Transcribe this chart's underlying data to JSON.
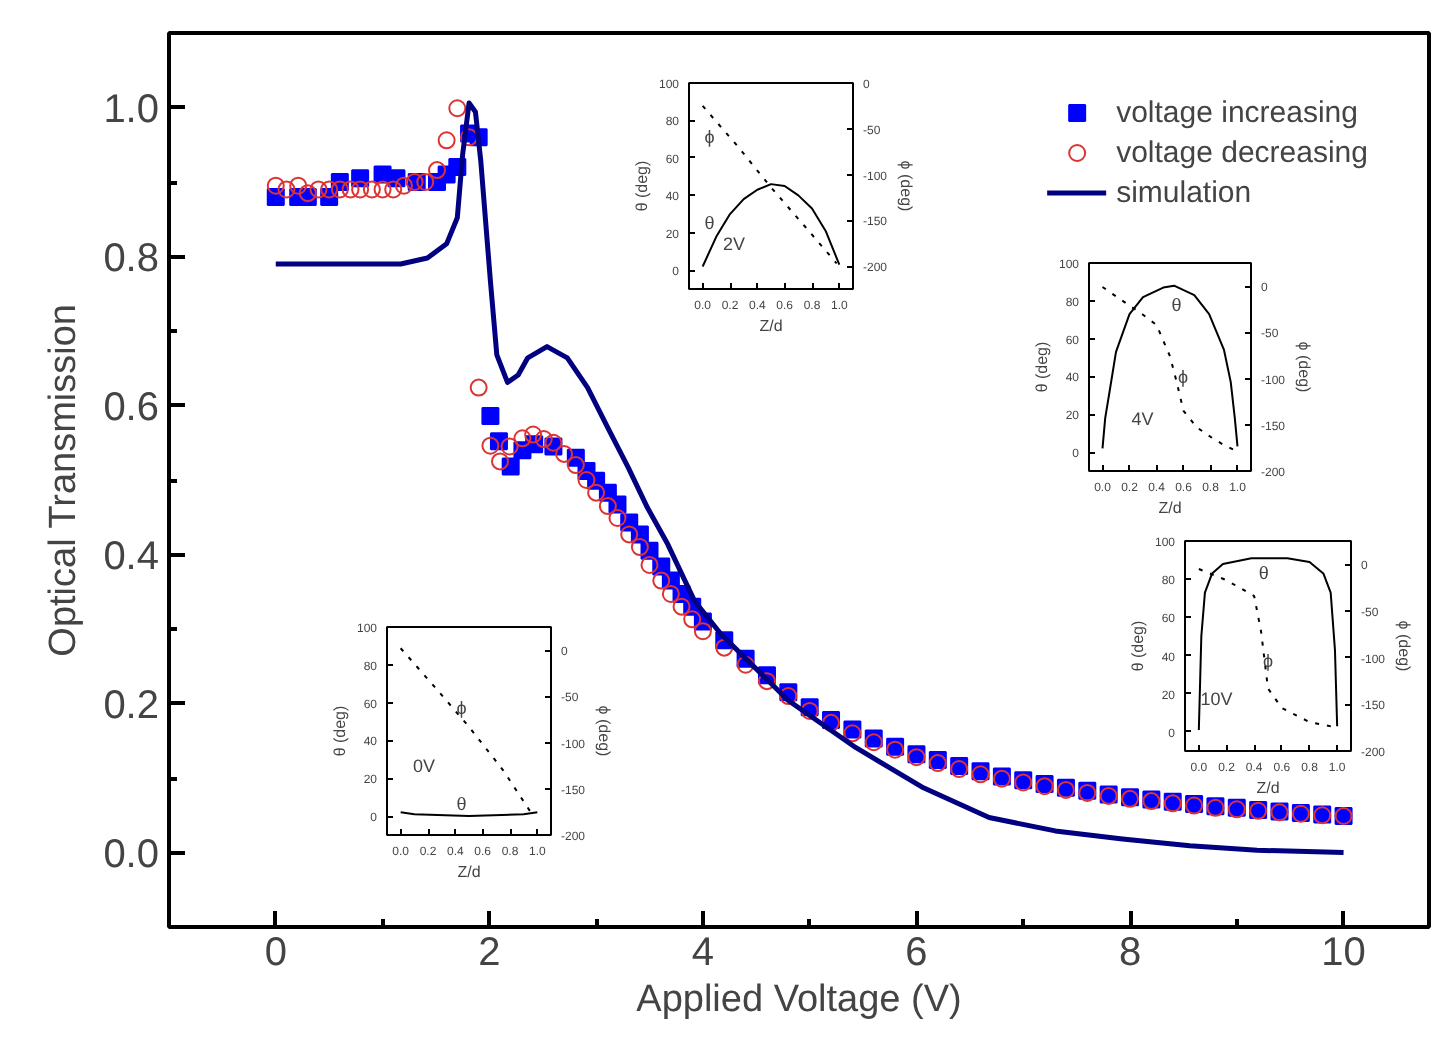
{
  "chart_data": [
    {
      "type": "scatter",
      "xlabel": "Applied Voltage (V)",
      "ylabel": "Optical Transmission",
      "xlim": [
        -1,
        10.8
      ],
      "ylim": [
        -0.1,
        1.1
      ],
      "xticks": [
        0,
        {
          "value": 1,
          "label": null
        },
        2,
        {
          "value": 3,
          "label": null
        },
        4,
        {
          "value": 5,
          "label": null
        },
        6,
        {
          "value": 7,
          "label": null
        },
        8,
        {
          "value": 9,
          "label": null
        },
        10
      ],
      "yticks": [
        {
          "value": 0,
          "label": "0.0"
        },
        {
          "value": 0.1,
          "label": null
        },
        {
          "value": 0.2,
          "label": "0.2"
        },
        {
          "value": 0.3,
          "label": null
        },
        {
          "value": 0.4,
          "label": "0.4"
        },
        {
          "value": 0.5,
          "label": null
        },
        {
          "value": 0.6,
          "label": "0.6"
        },
        {
          "value": 0.7,
          "label": null
        },
        {
          "value": 0.8,
          "label": "0.8"
        },
        {
          "value": 0.9,
          "label": null
        },
        {
          "value": 1.0,
          "label": "1.0"
        }
      ],
      "grid": false,
      "legend": "top right",
      "series": [
        {
          "name": "voltage increasing",
          "type": "scatter",
          "marker": "square",
          "color": "#0000ff",
          "x": [
            0,
            0.21,
            0.3,
            0.5,
            0.6,
            0.79,
            1.0,
            1.13,
            1.32,
            1.51,
            1.6,
            1.7,
            1.81,
            1.9,
            2.01,
            2.09,
            2.2,
            2.31,
            2.42,
            2.6,
            2.81,
            2.91,
            3.0,
            3.11,
            3.2,
            3.31,
            3.41,
            3.5,
            3.61,
            3.7,
            3.8,
            3.9,
            4.0,
            4.2,
            4.4,
            4.6,
            4.8,
            5.0,
            5.2,
            5.4,
            5.6,
            5.8,
            6.0,
            6.2,
            6.4,
            6.6,
            6.8,
            7.0,
            7.2,
            7.4,
            7.6,
            7.8,
            8.0,
            8.2,
            8.4,
            8.6,
            8.8,
            9.0,
            9.2,
            9.4,
            9.6,
            9.8,
            10.0
          ],
          "values": [
            0.88,
            0.88,
            0.88,
            0.88,
            0.9,
            0.905,
            0.91,
            0.905,
            0.9,
            0.9,
            0.91,
            0.92,
            0.965,
            0.96,
            0.586,
            0.552,
            0.518,
            0.54,
            0.548,
            0.545,
            0.53,
            0.512,
            0.499,
            0.483,
            0.467,
            0.443,
            0.427,
            0.405,
            0.384,
            0.365,
            0.347,
            0.33,
            0.31,
            0.285,
            0.26,
            0.238,
            0.215,
            0.195,
            0.178,
            0.165,
            0.153,
            0.142,
            0.132,
            0.124,
            0.116,
            0.109,
            0.102,
            0.097,
            0.092,
            0.087,
            0.083,
            0.078,
            0.074,
            0.071,
            0.068,
            0.065,
            0.062,
            0.06,
            0.057,
            0.055,
            0.053,
            0.051,
            0.049
          ]
        },
        {
          "name": "voltage decreasing",
          "type": "scatter",
          "marker": "circle",
          "color": "#dd3333",
          "x": [
            0,
            0.1,
            0.21,
            0.3,
            0.4,
            0.5,
            0.6,
            0.7,
            0.79,
            0.9,
            1.0,
            1.1,
            1.2,
            1.3,
            1.4,
            1.51,
            1.6,
            1.7,
            1.81,
            1.9,
            2.01,
            2.1,
            2.19,
            2.31,
            2.41,
            2.51,
            2.6,
            2.7,
            2.81,
            2.91,
            3.0,
            3.11,
            3.2,
            3.31,
            3.41,
            3.5,
            3.61,
            3.7,
            3.8,
            3.9,
            4.0,
            4.2,
            4.4,
            4.6,
            4.8,
            5.0,
            5.2,
            5.4,
            5.6,
            5.8,
            6.0,
            6.2,
            6.4,
            6.6,
            6.8,
            7.0,
            7.2,
            7.4,
            7.6,
            7.8,
            8.0,
            8.2,
            8.4,
            8.6,
            8.8,
            9.0,
            9.2,
            9.4,
            9.6,
            9.8,
            10.0
          ],
          "values": [
            0.895,
            0.89,
            0.895,
            0.885,
            0.89,
            0.89,
            0.89,
            0.89,
            0.89,
            0.89,
            0.89,
            0.89,
            0.895,
            0.9,
            0.9,
            0.916,
            0.956,
            0.999,
            0.96,
            0.624,
            0.546,
            0.525,
            0.545,
            0.556,
            0.561,
            0.555,
            0.55,
            0.535,
            0.52,
            0.5,
            0.483,
            0.465,
            0.449,
            0.427,
            0.41,
            0.386,
            0.365,
            0.347,
            0.33,
            0.313,
            0.297,
            0.275,
            0.252,
            0.23,
            0.21,
            0.19,
            0.174,
            0.16,
            0.148,
            0.138,
            0.128,
            0.12,
            0.112,
            0.105,
            0.099,
            0.094,
            0.089,
            0.084,
            0.08,
            0.076,
            0.072,
            0.069,
            0.066,
            0.063,
            0.06,
            0.058,
            0.056,
            0.054,
            0.052,
            0.05,
            0.049
          ]
        },
        {
          "name": "simulation",
          "type": "line",
          "line_style": "solid",
          "color": "#000080",
          "x": [
            0,
            1.17,
            1.42,
            1.6,
            1.7,
            1.75,
            1.81,
            1.87,
            1.92,
            2.01,
            2.07,
            2.17,
            2.27,
            2.36,
            2.54,
            2.73,
            2.92,
            3.11,
            3.3,
            3.48,
            3.67,
            3.92,
            4.17,
            4.8,
            5.43,
            6.05,
            6.68,
            7.3,
            7.93,
            8.56,
            9.19,
            10.0
          ],
          "values": [
            0.79,
            0.79,
            0.798,
            0.817,
            0.852,
            0.937,
            1.006,
            0.994,
            0.928,
            0.767,
            0.668,
            0.631,
            0.641,
            0.664,
            0.679,
            0.664,
            0.624,
            0.57,
            0.517,
            0.463,
            0.414,
            0.338,
            0.293,
            0.204,
            0.141,
            0.088,
            0.047,
            0.029,
            0.018,
            0.009,
            0.003,
            0.0
          ]
        }
      ]
    },
    {
      "type": "line",
      "xlabel": "Z/d",
      "ylabel": "θ (deg)",
      "y2label": "ϕ (deg)",
      "grid": false,
      "xlim": [
        -0.1,
        1.1
      ],
      "ylim": [
        -10,
        100
      ],
      "y2lim": [
        -225,
        0
      ],
      "xticks": [
        {
          "value": 0,
          "label": "0.0"
        },
        {
          "value": 0.2,
          "label": "0.2"
        },
        {
          "value": 0.4,
          "label": "0.4"
        },
        {
          "value": 0.6,
          "label": "0.6"
        },
        {
          "value": 0.8,
          "label": "0.8"
        },
        {
          "value": 1,
          "label": "1.0"
        }
      ],
      "yticks": [
        0,
        20,
        40,
        60,
        80,
        100
      ],
      "y2ticks": [
        0,
        -50,
        -100,
        -150,
        -200
      ],
      "annotations": [
        "ϕ",
        "θ",
        "2V"
      ],
      "series": [
        {
          "color": "#000000",
          "line_style": "solid",
          "x": [
            0,
            0.1,
            0.2,
            0.3,
            0.4,
            0.5,
            0.6,
            0.7,
            0.8,
            0.9,
            1.0
          ],
          "values": [
            2,
            18,
            30,
            38,
            43,
            46,
            45,
            40,
            33,
            21,
            3
          ]
        },
        {
          "color": "#000000",
          "line_style": "dotted",
          "axis": "y2",
          "x": [
            0,
            0.25,
            0.5,
            0.75,
            0.98
          ],
          "values": [
            -25,
            -68,
            -114,
            -157,
            -197
          ]
        }
      ]
    },
    {
      "type": "line",
      "xlabel": "Z/d",
      "ylabel": "θ (deg)",
      "y2label": "ϕ (deg)",
      "grid": false,
      "xlim": [
        -0.1,
        1.1
      ],
      "ylim": [
        -10,
        100
      ],
      "y2lim": [
        -200,
        25
      ],
      "xticks": [
        {
          "value": 0,
          "label": "0.0"
        },
        {
          "value": 0.2,
          "label": "0.2"
        },
        {
          "value": 0.4,
          "label": "0.4"
        },
        {
          "value": 0.6,
          "label": "0.6"
        },
        {
          "value": 0.8,
          "label": "0.8"
        },
        {
          "value": 1,
          "label": "1.0"
        }
      ],
      "yticks": [
        0,
        20,
        40,
        60,
        80,
        100
      ],
      "y2ticks": [
        0,
        -50,
        -100,
        -150,
        -200
      ],
      "annotations": [
        "θ",
        "ϕ",
        "4V"
      ],
      "series": [
        {
          "color": "#000000",
          "line_style": "solid",
          "x": [
            0,
            0.02,
            0.05,
            0.1,
            0.2,
            0.3,
            0.45,
            0.53,
            0.68,
            0.79,
            0.9,
            0.95,
            0.98,
            1.0
          ],
          "values": [
            2,
            18,
            31,
            53,
            73,
            82,
            87,
            88,
            83,
            73,
            54,
            37,
            18,
            3
          ]
        },
        {
          "color": "#000000",
          "line_style": "dotted",
          "axis": "y2",
          "x": [
            0,
            0.2,
            0.3,
            0.4,
            0.5,
            0.55,
            0.6,
            0.7,
            0.8,
            0.9,
            1.0
          ],
          "values": [
            -1,
            -21,
            -31,
            -42,
            -76,
            -104,
            -135,
            -153,
            -163,
            -172,
            -179
          ]
        }
      ]
    },
    {
      "type": "line",
      "xlabel": "Z/d",
      "ylabel": "θ (deg)",
      "y2label": "ϕ (deg)",
      "grid": false,
      "xlim": [
        -0.1,
        1.1
      ],
      "ylim": [
        -10,
        100
      ],
      "y2lim": [
        -200,
        25
      ],
      "xticks": [
        {
          "value": 0,
          "label": "0.0"
        },
        {
          "value": 0.2,
          "label": "0.2"
        },
        {
          "value": 0.4,
          "label": "0.4"
        },
        {
          "value": 0.6,
          "label": "0.6"
        },
        {
          "value": 0.8,
          "label": "0.8"
        },
        {
          "value": 1,
          "label": "1.0"
        }
      ],
      "yticks": [
        0,
        20,
        40,
        60,
        80,
        100
      ],
      "y2ticks": [
        0,
        -50,
        -100,
        -150,
        -200
      ],
      "annotations": [
        "θ",
        "ϕ",
        "10V"
      ],
      "series": [
        {
          "color": "#000000",
          "line_style": "solid",
          "x": [
            0,
            0.018,
            0.044,
            0.096,
            0.174,
            0.38,
            0.64,
            0.8,
            0.9,
            0.953,
            0.984,
            1.0
          ],
          "values": [
            1,
            50,
            73,
            83,
            88,
            91,
            91,
            89,
            83,
            73,
            43,
            3
          ]
        },
        {
          "color": "#000000",
          "line_style": "dotted",
          "axis": "y2",
          "x": [
            0,
            0.2,
            0.4,
            0.45,
            0.5,
            0.6,
            0.8,
            1.0
          ],
          "values": [
            -5,
            -17,
            -34,
            -72,
            -133,
            -154,
            -169,
            -175
          ]
        }
      ]
    },
    {
      "type": "line",
      "xlabel": "Z/d",
      "ylabel": "θ (deg)",
      "y2label": "ϕ (deg)",
      "grid": false,
      "xlim": [
        -0.1,
        1.1
      ],
      "ylim": [
        -10,
        100
      ],
      "y2lim": [
        -200,
        25
      ],
      "xticks": [
        {
          "value": 0,
          "label": "0.0"
        },
        {
          "value": 0.2,
          "label": "0.2"
        },
        {
          "value": 0.4,
          "label": "0.4"
        },
        {
          "value": 0.6,
          "label": "0.6"
        },
        {
          "value": 0.8,
          "label": "0.8"
        },
        {
          "value": 1,
          "label": "1.0"
        }
      ],
      "yticks": [
        0,
        20,
        40,
        60,
        80,
        100
      ],
      "y2ticks": [
        0,
        -50,
        -100,
        -150,
        -200
      ],
      "annotations": [
        "ϕ",
        "θ",
        "0V"
      ],
      "series": [
        {
          "color": "#000000",
          "line_style": "solid",
          "x": [
            0,
            0.1,
            0.5,
            0.9,
            1.0
          ],
          "values": [
            2,
            1,
            0,
            1,
            2
          ]
        },
        {
          "color": "#000000",
          "line_style": "dotted",
          "axis": "y2",
          "x": [
            0,
            0.25,
            0.5,
            0.75,
            0.95
          ],
          "values": [
            2,
            -40,
            -83,
            -130,
            -175
          ]
        }
      ]
    }
  ]
}
